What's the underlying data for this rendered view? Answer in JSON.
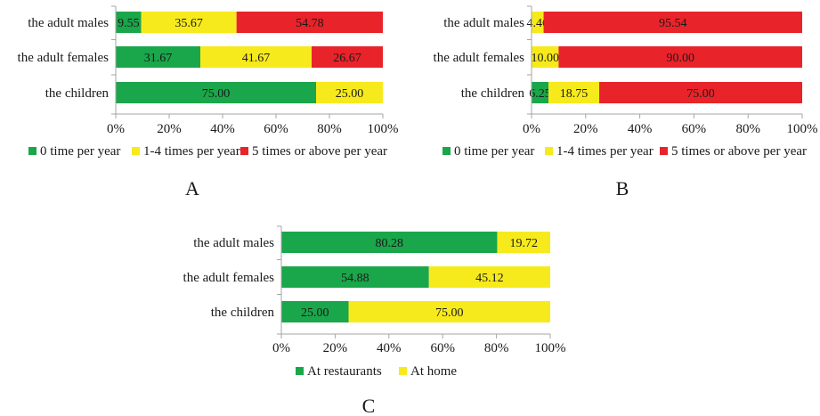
{
  "colors": {
    "green": "#1aa64a",
    "yellow": "#f6ea1c",
    "red": "#e8232a",
    "axis": "#a6a6a6"
  },
  "chart_data": [
    {
      "type": "bar",
      "stacked": true,
      "orientation": "horizontal",
      "panel_label": "A",
      "categories": [
        "the adult males",
        "the adult females",
        "the children"
      ],
      "series": [
        {
          "name": "0 time per year",
          "color": "#1aa64a",
          "values": [
            9.55,
            31.67,
            75.0
          ],
          "labels": [
            "9.55",
            "31.67",
            "75.00"
          ]
        },
        {
          "name": "1-4 times per year",
          "color": "#f6ea1c",
          "values": [
            35.67,
            41.67,
            25.0
          ],
          "labels": [
            "35.67",
            "41.67",
            "25.00"
          ]
        },
        {
          "name": "5 times or above per year",
          "color": "#e8232a",
          "values": [
            54.78,
            26.67,
            0
          ],
          "labels": [
            "54.78",
            "26.67",
            ""
          ]
        }
      ],
      "xlim": [
        0,
        100
      ],
      "xticks": [
        "0%",
        "20%",
        "40%",
        "60%",
        "80%",
        "100%"
      ],
      "legend_position": "bottom"
    },
    {
      "type": "bar",
      "stacked": true,
      "orientation": "horizontal",
      "panel_label": "B",
      "categories": [
        "the adult males",
        "the adult females",
        "the children"
      ],
      "series": [
        {
          "name": "0 time per year",
          "color": "#1aa64a",
          "values": [
            0,
            0,
            6.25
          ],
          "labels": [
            "",
            "",
            "6.25"
          ]
        },
        {
          "name": "1-4 times per year",
          "color": "#f6ea1c",
          "values": [
            4.46,
            10.0,
            18.75
          ],
          "labels": [
            "4.46",
            "10.00",
            "18.75"
          ]
        },
        {
          "name": "5 times or above per year",
          "color": "#e8232a",
          "values": [
            95.54,
            90.0,
            75.0
          ],
          "labels": [
            "95.54",
            "90.00",
            "75.00"
          ]
        }
      ],
      "xlim": [
        0,
        100
      ],
      "xticks": [
        "0%",
        "20%",
        "40%",
        "60%",
        "80%",
        "100%"
      ],
      "legend_position": "bottom"
    },
    {
      "type": "bar",
      "stacked": true,
      "orientation": "horizontal",
      "panel_label": "C",
      "categories": [
        "the adult males",
        "the adult females",
        "the children"
      ],
      "series": [
        {
          "name": "At restaurants",
          "color": "#1aa64a",
          "values": [
            80.28,
            54.88,
            25.0
          ],
          "labels": [
            "80.28",
            "54.88",
            "25.00"
          ]
        },
        {
          "name": "At home",
          "color": "#f6ea1c",
          "values": [
            19.72,
            45.12,
            75.0
          ],
          "labels": [
            "19.72",
            "45.12",
            "75.00"
          ]
        }
      ],
      "xlim": [
        0,
        100
      ],
      "xticks": [
        "0%",
        "20%",
        "40%",
        "60%",
        "80%",
        "100%"
      ],
      "legend_position": "bottom"
    }
  ]
}
